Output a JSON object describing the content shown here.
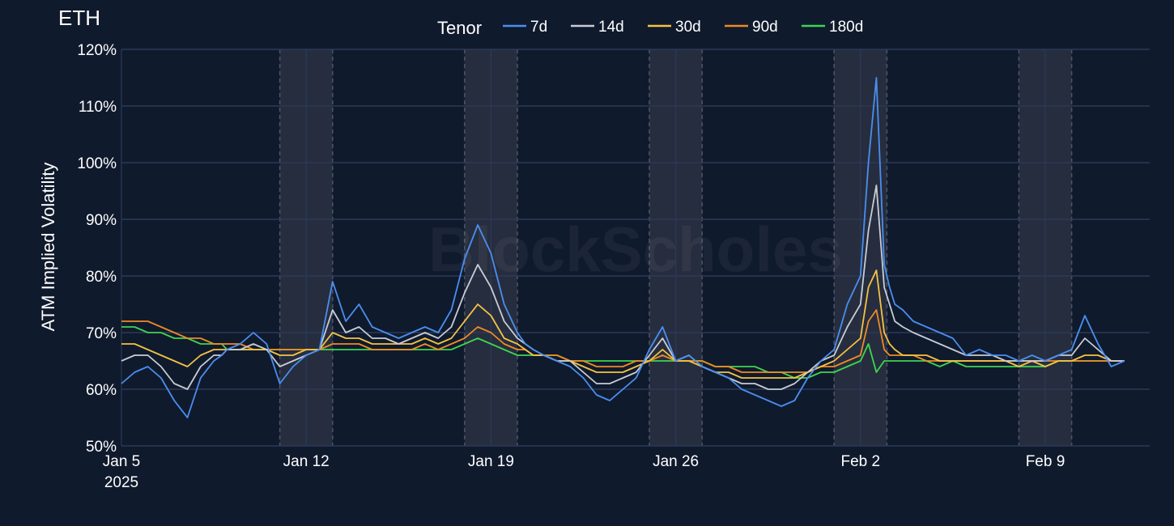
{
  "chart_data": {
    "type": "line",
    "title": "ETH",
    "watermark": "BlockScholes",
    "ylabel": "ATM Implied Volatility",
    "xlabel": "",
    "ylim": [
      50,
      120
    ],
    "y_ticks": [
      "50%",
      "60%",
      "70%",
      "80%",
      "90%",
      "100%",
      "110%",
      "120%"
    ],
    "x_ticks": [
      {
        "day": 0,
        "label": "Jan 5",
        "sublabel": "2025"
      },
      {
        "day": 7,
        "label": "Jan 12"
      },
      {
        "day": 14,
        "label": "Jan 19"
      },
      {
        "day": 21,
        "label": "Jan 26"
      },
      {
        "day": 28,
        "label": "Feb 2"
      },
      {
        "day": 35,
        "label": "Feb 9"
      }
    ],
    "xlim_days": [
      0,
      38.5
    ],
    "grid": true,
    "legend_title": "Tenor",
    "legend_position": "top-center",
    "weekend_shading": [
      [
        6,
        8
      ],
      [
        13,
        15
      ],
      [
        20,
        22
      ],
      [
        27,
        29
      ],
      [
        34,
        36
      ]
    ],
    "series": [
      {
        "name": "7d",
        "color": "#4a8ff0",
        "x": [
          0,
          0.5,
          1,
          1.5,
          2,
          2.5,
          3,
          3.5,
          3.8,
          4,
          4.5,
          5,
          5.5,
          6,
          6.5,
          7,
          7.5,
          8,
          8.5,
          9,
          9.5,
          10,
          10.5,
          11,
          11.5,
          12,
          12.5,
          13,
          13.5,
          14,
          14.5,
          15,
          15.3,
          15.6,
          16,
          16.5,
          17,
          17.5,
          18,
          18.5,
          19,
          19.5,
          20,
          20.5,
          21,
          21.5,
          22,
          22.5,
          23,
          23.5,
          24,
          24.5,
          25,
          25.5,
          26,
          26.5,
          27,
          27.5,
          28,
          28.3,
          28.6,
          28.9,
          29.1,
          29.3,
          29.6,
          30,
          30.5,
          31,
          31.5,
          32,
          32.5,
          33,
          33.5,
          34,
          34.5,
          35,
          35.5,
          36,
          36.5,
          37,
          37.5,
          38
        ],
        "y": [
          61,
          63,
          64,
          62,
          58,
          55,
          62,
          65,
          66,
          67,
          68,
          70,
          68,
          61,
          64,
          66,
          67,
          79,
          72,
          75,
          71,
          70,
          69,
          70,
          71,
          70,
          74,
          83,
          89,
          84,
          75,
          70,
          68,
          67,
          66,
          65,
          64,
          62,
          59,
          58,
          60,
          62,
          67,
          71,
          65,
          66,
          64,
          63,
          62,
          60,
          59,
          58,
          57,
          58,
          62,
          65,
          67,
          75,
          80,
          100,
          115,
          82,
          78,
          75,
          74,
          72,
          71,
          70,
          69,
          66,
          67,
          66,
          66,
          65,
          66,
          65,
          66,
          67,
          73,
          68,
          64,
          65
        ]
      },
      {
        "name": "14d",
        "color": "#c8ccd4",
        "x": [
          0,
          0.5,
          1,
          1.5,
          2,
          2.5,
          3,
          3.5,
          3.8,
          4,
          4.5,
          5,
          5.5,
          6,
          6.5,
          7,
          7.5,
          8,
          8.5,
          9,
          9.5,
          10,
          10.5,
          11,
          11.5,
          12,
          12.5,
          13,
          13.5,
          14,
          14.5,
          15,
          15.3,
          15.6,
          16,
          16.5,
          17,
          17.5,
          18,
          18.5,
          19,
          19.5,
          20,
          20.5,
          21,
          21.5,
          22,
          22.5,
          23,
          23.5,
          24,
          24.5,
          25,
          25.5,
          26,
          26.5,
          27,
          27.5,
          28,
          28.3,
          28.6,
          28.9,
          29.1,
          29.3,
          29.6,
          30,
          30.5,
          31,
          31.5,
          32,
          32.5,
          33,
          33.5,
          34,
          34.5,
          35,
          35.5,
          36,
          36.5,
          37,
          37.5,
          38
        ],
        "y": [
          65,
          66,
          66,
          64,
          61,
          60,
          64,
          66,
          66,
          67,
          67,
          68,
          67,
          64,
          65,
          66,
          67,
          74,
          70,
          71,
          69,
          69,
          68,
          69,
          70,
          69,
          71,
          77,
          82,
          78,
          72,
          69,
          68,
          67,
          66,
          65,
          65,
          63,
          61,
          61,
          62,
          63,
          66,
          69,
          65,
          66,
          64,
          63,
          62,
          61,
          61,
          60,
          60,
          61,
          63,
          65,
          66,
          71,
          75,
          88,
          96,
          78,
          75,
          72,
          71,
          70,
          69,
          68,
          67,
          66,
          66,
          66,
          65,
          65,
          65,
          65,
          66,
          66,
          69,
          67,
          65,
          65
        ]
      },
      {
        "name": "30d",
        "color": "#f5c344",
        "x": [
          0,
          0.5,
          1,
          1.5,
          2,
          2.5,
          3,
          3.5,
          3.8,
          4,
          4.5,
          5,
          5.5,
          6,
          6.5,
          7,
          7.5,
          8,
          8.5,
          9,
          9.5,
          10,
          10.5,
          11,
          11.5,
          12,
          12.5,
          13,
          13.5,
          14,
          14.5,
          15,
          15.3,
          15.6,
          16,
          16.5,
          17,
          17.5,
          18,
          18.5,
          19,
          19.5,
          20,
          20.5,
          21,
          21.5,
          22,
          22.5,
          23,
          23.5,
          24,
          24.5,
          25,
          25.5,
          26,
          26.5,
          27,
          27.5,
          28,
          28.3,
          28.6,
          28.9,
          29.1,
          29.3,
          29.6,
          30,
          30.5,
          31,
          31.5,
          32,
          32.5,
          33,
          33.5,
          34,
          34.5,
          35,
          35.5,
          36,
          36.5,
          37,
          37.5,
          38
        ],
        "y": [
          68,
          68,
          67,
          66,
          65,
          64,
          66,
          67,
          67,
          67,
          67,
          67,
          67,
          66,
          66,
          67,
          67,
          70,
          69,
          69,
          68,
          68,
          68,
          68,
          69,
          68,
          69,
          72,
          75,
          73,
          69,
          68,
          67,
          66,
          66,
          65,
          65,
          64,
          63,
          63,
          63,
          64,
          65,
          67,
          65,
          65,
          64,
          63,
          63,
          62,
          62,
          62,
          62,
          62,
          63,
          64,
          65,
          67,
          69,
          78,
          81,
          70,
          68,
          67,
          66,
          66,
          66,
          65,
          65,
          65,
          65,
          65,
          65,
          64,
          65,
          64,
          65,
          65,
          66,
          66,
          65,
          65
        ]
      },
      {
        "name": "90d",
        "color": "#f08a24",
        "x": [
          0,
          0.5,
          1,
          1.5,
          2,
          2.5,
          3,
          3.5,
          3.8,
          4,
          4.5,
          5,
          5.5,
          6,
          6.5,
          7,
          7.5,
          8,
          8.5,
          9,
          9.5,
          10,
          10.5,
          11,
          11.5,
          12,
          12.5,
          13,
          13.5,
          14,
          14.5,
          15,
          15.3,
          15.6,
          16,
          16.5,
          17,
          17.5,
          18,
          18.5,
          19,
          19.5,
          20,
          20.5,
          21,
          21.5,
          22,
          22.5,
          23,
          23.5,
          24,
          24.5,
          25,
          25.5,
          26,
          26.5,
          27,
          27.5,
          28,
          28.3,
          28.6,
          28.9,
          29.1,
          29.3,
          29.6,
          30,
          30.5,
          31,
          31.5,
          32,
          32.5,
          33,
          33.5,
          34,
          34.5,
          35,
          35.5,
          36,
          36.5,
          37,
          37.5,
          38
        ],
        "y": [
          72,
          72,
          72,
          71,
          70,
          69,
          69,
          68,
          68,
          68,
          68,
          67,
          67,
          67,
          67,
          67,
          67,
          68,
          68,
          68,
          67,
          67,
          67,
          67,
          68,
          67,
          68,
          69,
          71,
          70,
          68,
          67,
          67,
          66,
          66,
          66,
          65,
          65,
          64,
          64,
          64,
          65,
          65,
          66,
          65,
          65,
          65,
          64,
          64,
          63,
          63,
          63,
          63,
          63,
          63,
          64,
          64,
          65,
          66,
          72,
          74,
          67,
          66,
          66,
          66,
          66,
          65,
          65,
          65,
          65,
          65,
          65,
          65,
          65,
          65,
          65,
          65,
          65,
          65,
          65,
          65,
          65
        ]
      },
      {
        "name": "180d",
        "color": "#3dd64e",
        "x": [
          0,
          0.5,
          1,
          1.5,
          2,
          2.5,
          3,
          3.5,
          3.8,
          4,
          4.5,
          5,
          5.5,
          6,
          6.5,
          7,
          7.5,
          8,
          8.5,
          9,
          9.5,
          10,
          10.5,
          11,
          11.5,
          12,
          12.5,
          13,
          13.5,
          14,
          14.5,
          15,
          15.3,
          15.6,
          16,
          16.5,
          17,
          17.5,
          18,
          18.5,
          19,
          19.5,
          20,
          20.5,
          21,
          21.5,
          22,
          22.5,
          23,
          23.5,
          24,
          24.5,
          25,
          25.5,
          26,
          26.5,
          27,
          27.5,
          28,
          28.3,
          28.6,
          28.9,
          29.1,
          29.3,
          29.6,
          30,
          30.5,
          31,
          31.5,
          32,
          32.5,
          33,
          33.5,
          34,
          34.5,
          35,
          35.5,
          36,
          36.5,
          37,
          37.5,
          38
        ],
        "y": [
          71,
          71,
          70,
          70,
          69,
          69,
          68,
          68,
          68,
          67,
          67,
          67,
          67,
          67,
          67,
          67,
          67,
          67,
          67,
          67,
          67,
          67,
          67,
          67,
          67,
          67,
          67,
          68,
          69,
          68,
          67,
          66,
          66,
          66,
          66,
          66,
          65,
          65,
          65,
          65,
          65,
          65,
          65,
          65,
          65,
          65,
          65,
          64,
          64,
          64,
          64,
          63,
          63,
          62,
          62,
          63,
          63,
          64,
          65,
          68,
          63,
          65,
          65,
          65,
          65,
          65,
          65,
          64,
          65,
          64,
          64,
          64,
          64,
          64,
          64,
          64,
          65,
          65,
          65,
          65,
          65,
          65
        ]
      }
    ]
  }
}
